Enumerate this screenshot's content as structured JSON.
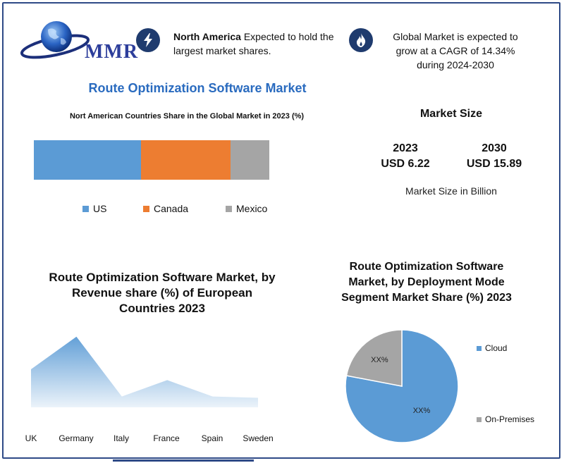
{
  "logo": {
    "text": "MMR"
  },
  "header": {
    "note1_bold": "North America",
    "note1_text": " Expected to hold the largest market shares.",
    "note2_text": "Global Market is expected to grow at a CAGR of 14.34% during 2024-2030",
    "icons": [
      "lightning-icon",
      "flame-icon"
    ]
  },
  "main_title": "Route Optimization Software Market",
  "market_size": {
    "title": "Market Size",
    "year_2023": "2023",
    "value_2023": "USD 6.22",
    "year_2030": "2030",
    "value_2030": "USD 15.89",
    "unit": "Market Size in Billion"
  },
  "colors": {
    "us": "#5b9bd5",
    "canada": "#ed7d31",
    "mexico": "#a5a5a5",
    "accent": "#2a6bbf",
    "icon_bg": "#1f3b6e"
  },
  "chart_data": [
    {
      "type": "bar",
      "stacked": "horizontal-100%",
      "title": "Nort American Countries Share in the Global Market in 2023  (%)",
      "series": [
        {
          "name": "US",
          "values": [
            45.5
          ]
        },
        {
          "name": "Canada",
          "values": [
            38.0
          ]
        },
        {
          "name": "Mexico",
          "values": [
            16.5
          ]
        }
      ],
      "legend": "bottom"
    },
    {
      "type": "area",
      "title": "Route Optimization Software Market, by Revenue share (%) of European Countries 2023",
      "categories": [
        "UK",
        "Germany",
        "Italy",
        "France",
        "Spain",
        "Sweden"
      ],
      "values": [
        14,
        26,
        4,
        10,
        4,
        3.5
      ],
      "ylim": [
        0,
        28
      ],
      "grid": false
    },
    {
      "type": "pie",
      "title": "Route Optimization Software Market, by  Deployment Mode Segment Market Share (%) 2023",
      "categories": [
        "Cloud",
        "On-Premises"
      ],
      "values": [
        78,
        22
      ],
      "labels": [
        "XX%",
        "XX%"
      ],
      "legend": "right"
    }
  ]
}
